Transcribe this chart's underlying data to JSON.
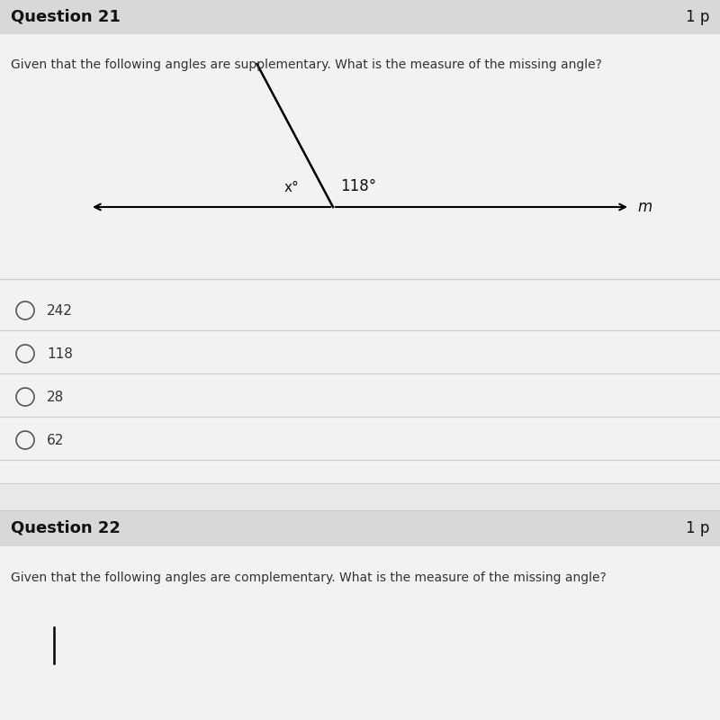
{
  "title": "Question 21",
  "title_right": "1 p",
  "question_text": "Given that the following angles are supplementary. What is the measure of the missing angle?",
  "angle_label_x": "x°",
  "angle_label_118": "118°",
  "line_label": "m",
  "choices": [
    "242",
    "118",
    "28",
    "62"
  ],
  "question2_title": "Question 22",
  "question2_right": "1 p",
  "question2_text": "Given that the following angles are complementary. What is the measure of the missing angle?",
  "bg_color": "#e8e8e8",
  "content_bg": "#f2f2f2",
  "line_color": "#000000",
  "text_color": "#333333",
  "title_color": "#111111",
  "divider_color": "#cccccc",
  "header_bg": "#d8d8d8"
}
